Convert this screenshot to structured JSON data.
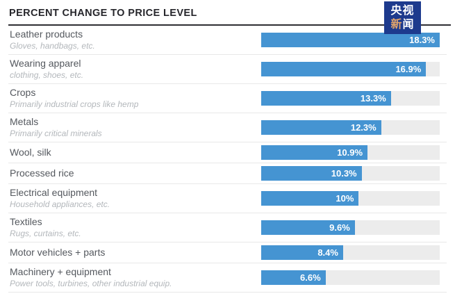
{
  "header": {
    "title": "PERCENT CHANGE TO PRICE LEVEL",
    "logo": {
      "line1": "央视",
      "line2_first": "新",
      "line2_second": "闻"
    }
  },
  "colors": {
    "bar": "#4594d2",
    "track": "#ececec",
    "logo_bg": "#1d3a8d",
    "logo_accent": "#e2a46b",
    "title_text": "#26262b",
    "label_text": "#54585e",
    "sublabel_text": "#b3b7bb",
    "divider": "#e8e8e8"
  },
  "chart_data": {
    "type": "bar",
    "orientation": "horizontal",
    "title": "PERCENT CHANGE TO PRICE LEVEL",
    "unit": "percent",
    "xlim": [
      0,
      18.3
    ],
    "grid": false,
    "legend": "none",
    "categories": [
      "Leather products",
      "Wearing apparel",
      "Crops",
      "Metals",
      "Wool, silk",
      "Processed rice",
      "Electrical equipment",
      "Textiles",
      "Motor vehicles + parts",
      "Machinery + equipment"
    ],
    "subtitles": [
      "Gloves, handbags, etc.",
      "clothing, shoes, etc.",
      "Primarily industrial crops like hemp",
      "Primarily critical minerals",
      "",
      "",
      "Household appliances, etc.",
      "Rugs, curtains, etc.",
      "",
      "Power tools, turbines, other industrial equip."
    ],
    "values": [
      18.3,
      16.9,
      13.3,
      12.3,
      10.9,
      10.3,
      10,
      9.6,
      8.4,
      6.6
    ],
    "value_labels": [
      "18.3%",
      "16.9%",
      "13.3%",
      "12.3%",
      "10.9%",
      "10.3%",
      "10%",
      "9.6%",
      "8.4%",
      "6.6%"
    ]
  }
}
